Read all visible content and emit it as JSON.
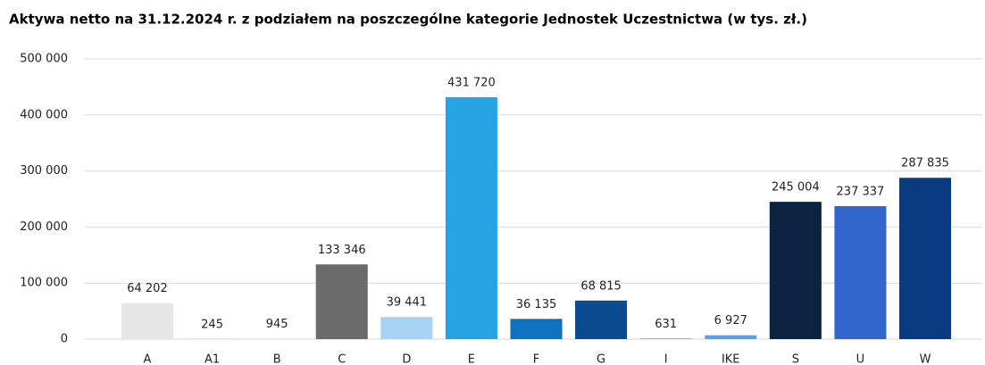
{
  "chart_data": {
    "type": "bar",
    "title": "Aktywa netto na 31.12.2024 r. z podziałem na poszczególne kategorie Jednostek Uczestnictwa (w tys. zł.)",
    "categories": [
      "A",
      "A1",
      "B",
      "C",
      "D",
      "E",
      "F",
      "G",
      "I",
      "IKE",
      "S",
      "U",
      "W"
    ],
    "values": [
      64202,
      245,
      945,
      133346,
      39441,
      431720,
      36135,
      68815,
      631,
      6927,
      245004,
      237337,
      287835
    ],
    "value_labels": [
      "64 202",
      "245",
      "945",
      "133 346",
      "39 441",
      "431 720",
      "36 135",
      "68 815",
      "631",
      "6 927",
      "245 004",
      "237 337",
      "287 835"
    ],
    "colors": [
      "#e6e6e6",
      "#3dbfb0",
      "#d9d9d9",
      "#6b6b6b",
      "#a6d3f2",
      "#26a3e3",
      "#0f72c0",
      "#0a4a8f",
      "#2a4a6f",
      "#5aa0e8",
      "#0d2342",
      "#3366cc",
      "#0a3a80"
    ],
    "ylim": [
      0,
      500000
    ],
    "yticks": [
      {
        "value": 0,
        "label": "0"
      },
      {
        "value": 100000,
        "label": "100 000"
      },
      {
        "value": 200000,
        "label": "200 000"
      },
      {
        "value": 300000,
        "label": "300 000"
      },
      {
        "value": 400000,
        "label": "400 000"
      },
      {
        "value": 500000,
        "label": "500 000"
      }
    ],
    "grid": true
  }
}
